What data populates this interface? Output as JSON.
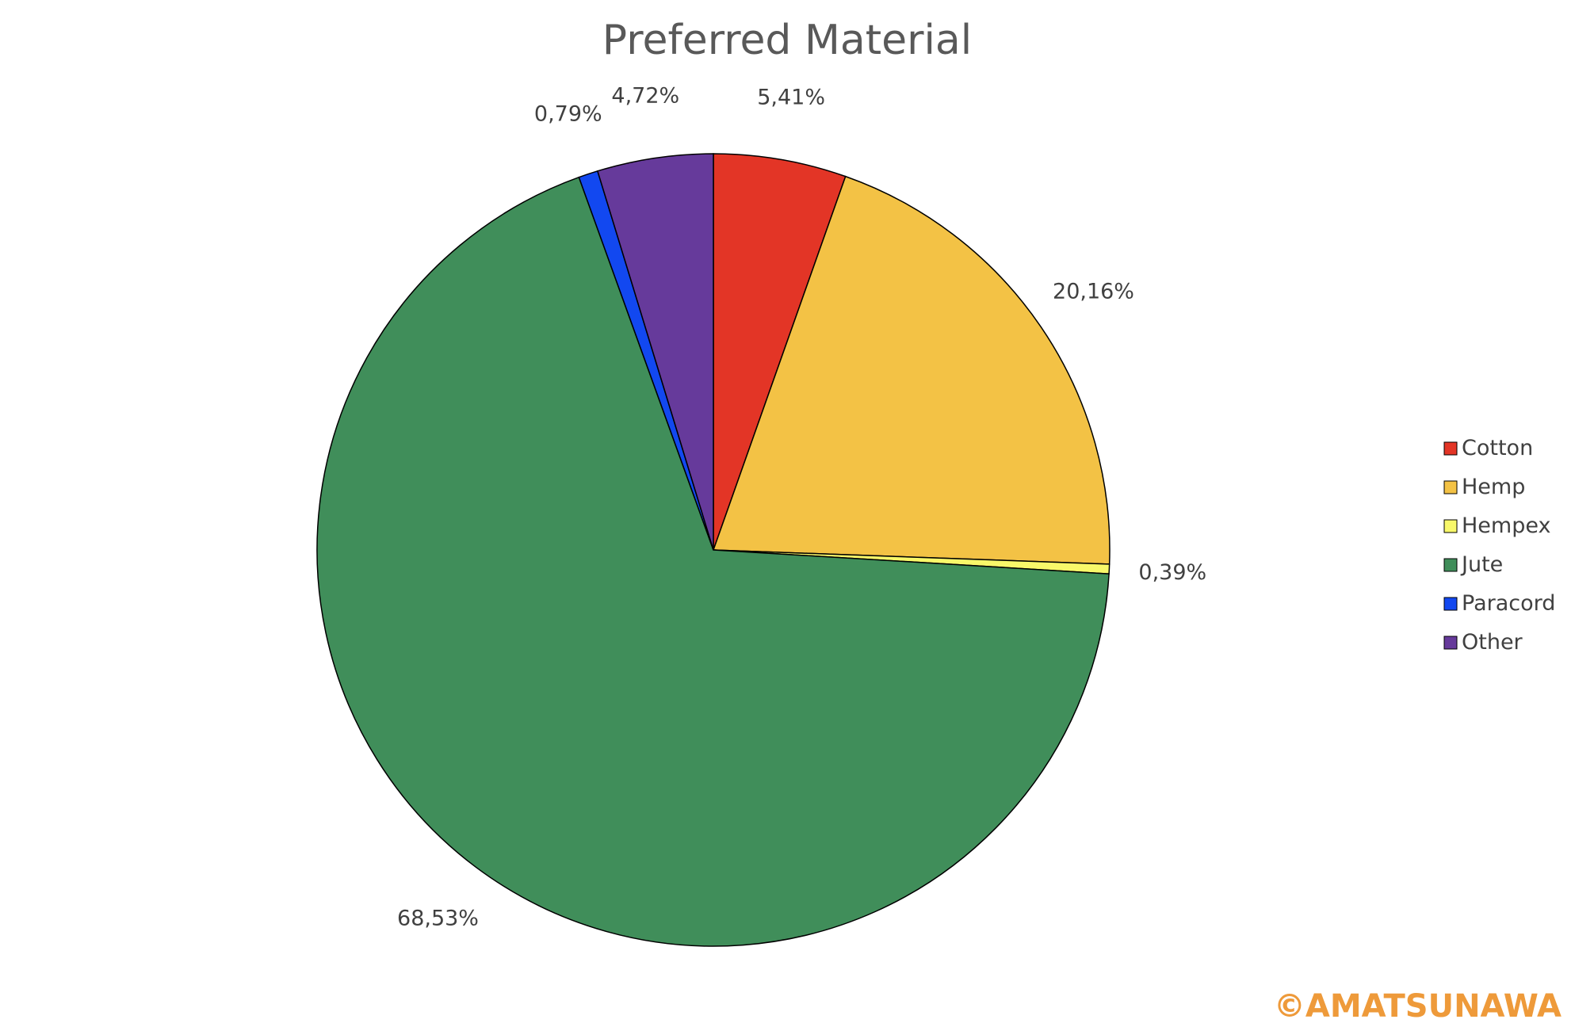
{
  "chart_data": {
    "type": "pie",
    "title": "Preferred Material",
    "categories": [
      "Cotton",
      "Hemp",
      "Hempex",
      "Jute",
      "Paracord",
      "Other"
    ],
    "values": [
      5.41,
      20.16,
      0.39,
      68.53,
      0.79,
      4.72
    ],
    "value_labels": [
      "5,41%",
      "20,16%",
      "0,39%",
      "68,53%",
      "0,79%",
      "4,72%"
    ],
    "colors": [
      "#e33526",
      "#f3c245",
      "#f8f86a",
      "#408e5a",
      "#1248f0",
      "#663a9b"
    ],
    "start_angle": "12 o'clock",
    "direction": "clockwise",
    "legend_position": "right"
  },
  "watermark": "©AMATSUNAWA"
}
